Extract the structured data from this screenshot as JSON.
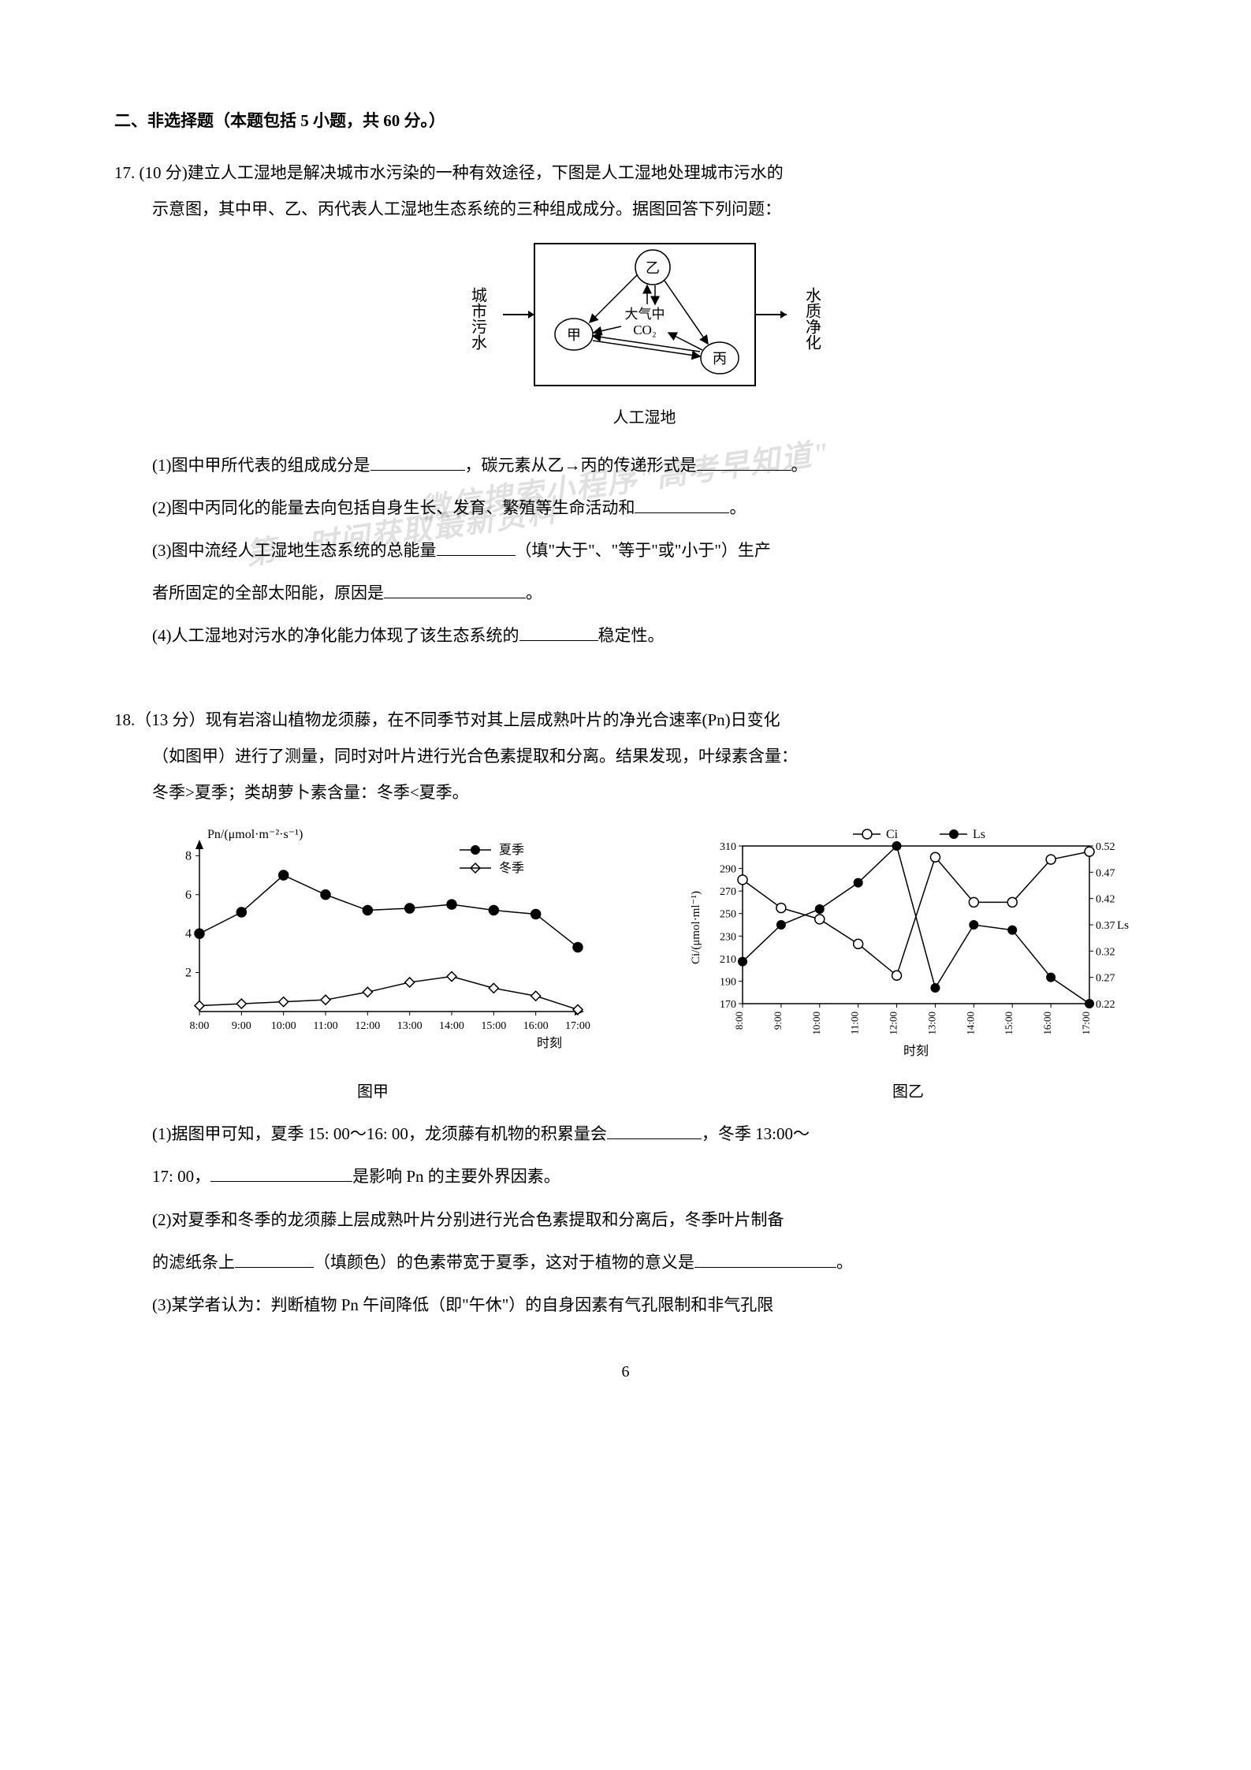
{
  "section_title": "二、非选择题（本题包括 5 小题，共 60 分。）",
  "q17": {
    "number": "17.",
    "points": "(10 分)",
    "intro1": "建立人工湿地是解决城市水污染的一种有效途径，下图是人工湿地处理城市污水的",
    "intro2": "示意图，其中甲、乙、丙代表人工湿地生态系统的三种组成成分。据图回答下列问题：",
    "diagram": {
      "left_label": "城市污水",
      "right_label": "水质净化",
      "node_a": "甲",
      "node_b": "乙",
      "node_c": "丙",
      "center_line1": "大气中",
      "center_line2": "CO₂",
      "caption": "人工湿地",
      "border_color": "#000000",
      "node_fill": "#ffffff",
      "node_stroke": "#000000"
    },
    "sub1": "(1)图中甲所代表的组成成分是",
    "sub1b": "，碳元素从乙→丙的传递形式是",
    "sub1c": "。",
    "sub2": "(2)图中丙同化的能量去向包括自身生长、发育、繁殖等生命活动和",
    "sub2b": "。",
    "sub3a": "(3)图中流经人工湿地生态系统的总能量",
    "sub3b": "（填\"大于\"、\"等于\"或\"小于\"）生产",
    "sub3c": "者所固定的全部太阳能，原因是",
    "sub3d": "。",
    "sub4a": "(4)人工湿地对污水的净化能力体现了该生态系统的",
    "sub4b": "稳定性。"
  },
  "q18": {
    "number": "18.",
    "points": "（13 分）",
    "intro1": "现有岩溶山植物龙须藤，在不同季节对其上层成熟叶片的净光合速率(Pn)日变化",
    "intro2": "（如图甲）进行了测量，同时对叶片进行光合色素提取和分离。结果发现，叶绿素含量：",
    "intro3": "冬季>夏季；类胡萝卜素含量：冬季<夏季。",
    "chart_a": {
      "ylabel": "Pn/(μmol·m⁻²·s⁻¹)",
      "xlabel": "时刻",
      "caption": "图甲",
      "legend_summer": "夏季",
      "legend_winter": "冬季",
      "x_ticks": [
        "8:00",
        "9:00",
        "10:00",
        "11:00",
        "12:00",
        "13:00",
        "14:00",
        "15:00",
        "16:00",
        "17:00"
      ],
      "y_ticks": [
        2,
        4,
        6,
        8
      ],
      "y_range": [
        0,
        8.5
      ],
      "summer_color": "#000000",
      "winter_color": "#000000",
      "summer_marker": "filled-circle",
      "winter_marker": "open-diamond",
      "summer_data": [
        4.0,
        5.1,
        7.0,
        6.0,
        5.2,
        5.3,
        5.5,
        5.2,
        5.0,
        3.3
      ],
      "winter_data": [
        0.3,
        0.4,
        0.5,
        0.6,
        1.0,
        1.5,
        1.8,
        1.2,
        0.8,
        0.1
      ]
    },
    "chart_b": {
      "ylabel_left": "Ci/(μmol·ml⁻¹)",
      "ylabel_right": "Ls",
      "xlabel": "时刻",
      "caption": "图乙",
      "legend_ci": "Ci",
      "legend_ls": "Ls",
      "x_ticks": [
        "8:00",
        "9:00",
        "10:00",
        "11:00",
        "12:00",
        "13:00",
        "14:00",
        "15:00",
        "16:00",
        "17:00"
      ],
      "y_left_ticks": [
        170,
        190,
        210,
        230,
        250,
        270,
        290,
        310
      ],
      "y_right_ticks": [
        0.22,
        0.27,
        0.32,
        0.37,
        0.42,
        0.47,
        0.52
      ],
      "ci_marker": "open-circle",
      "ls_marker": "filled-circle",
      "ci_data": [
        280,
        255,
        245,
        223,
        195,
        300,
        260,
        260,
        298,
        305
      ],
      "ls_data": [
        0.3,
        0.37,
        0.4,
        0.45,
        0.52,
        0.25,
        0.37,
        0.36,
        0.27,
        0.22
      ]
    },
    "sub1a": "(1)据图甲可知，夏季 15: 00～16: 00，龙须藤有机物的积累量会",
    "sub1b": "，冬季 13:00～",
    "sub1c": "17: 00，",
    "sub1d": "是影响 Pn 的主要外界因素。",
    "sub2a": "(2)对夏季和冬季的龙须藤上层成熟叶片分别进行光合色素提取和分离后，冬季叶片制备",
    "sub2b": "的滤纸条上",
    "sub2c": "（填颜色）的色素带宽于夏季，这对于植物的意义是",
    "sub2d": "。",
    "sub3": "(3)某学者认为：判断植物 Pn 午间降低（即\"午休\"）的自身因素有气孔限制和非气孔限"
  },
  "watermark1": "微信搜索小程序\"高考早知道\"",
  "watermark2": "第一时间获取最新资料",
  "page_number": "6"
}
